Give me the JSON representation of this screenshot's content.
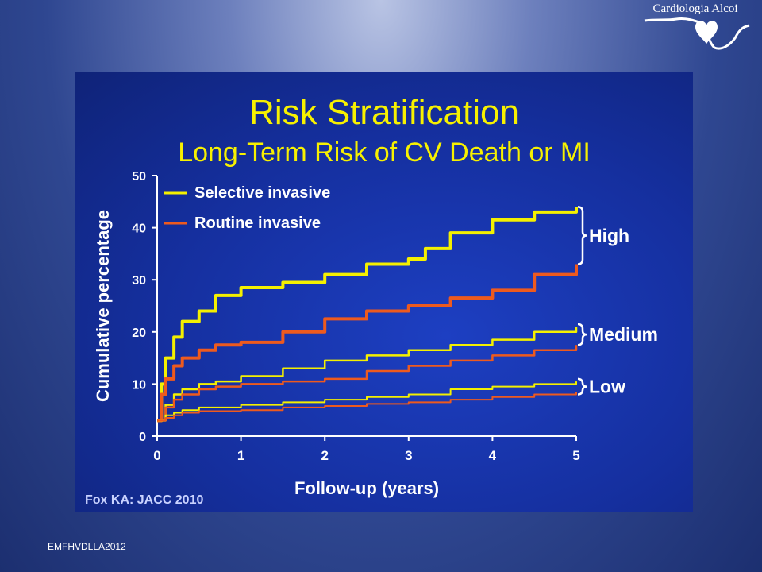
{
  "logo": {
    "text": "Cardiologia Alcoi"
  },
  "footer": {
    "code": "EMFHVDLLA2012"
  },
  "source": "Fox KA:  JACC 2010",
  "colors": {
    "selective": "#f4f000",
    "routine": "#ee5a1e",
    "title": "#f7f100",
    "axis_text": "#ffffff"
  },
  "chart_data": {
    "type": "line",
    "title": "Risk Stratification",
    "subtitle": "Long-Term Risk of CV Death or MI",
    "xlabel": "Follow-up (years)",
    "ylabel": "Cumulative percentage",
    "xlim": [
      0,
      5
    ],
    "ylim": [
      0,
      50
    ],
    "xticks": [
      "0",
      "1",
      "2",
      "3",
      "4",
      "5"
    ],
    "yticks": [
      "0",
      "10",
      "20",
      "30",
      "40",
      "50"
    ],
    "legend": [
      {
        "label": "Selective invasive",
        "series": "selective"
      },
      {
        "label": "Routine invasive",
        "series": "routine"
      }
    ],
    "legend_position": "top-left",
    "groups": [
      "High",
      "Medium",
      "Low"
    ],
    "series": [
      {
        "group": "High",
        "arm": "selective",
        "x": [
          0,
          0.05,
          0.1,
          0.2,
          0.3,
          0.5,
          0.7,
          1.0,
          1.5,
          2.0,
          2.5,
          3.0,
          3.2,
          3.5,
          4.0,
          4.5,
          5.0
        ],
        "y": [
          3,
          10,
          15,
          19,
          22,
          24,
          27,
          28.5,
          29.5,
          31,
          33,
          34,
          36,
          39,
          41.5,
          43,
          44
        ]
      },
      {
        "group": "High",
        "arm": "routine",
        "x": [
          0,
          0.05,
          0.1,
          0.2,
          0.3,
          0.5,
          0.7,
          1.0,
          1.5,
          2.0,
          2.5,
          3.0,
          3.5,
          4.0,
          4.5,
          5.0
        ],
        "y": [
          3,
          8,
          11,
          13.5,
          15,
          16.5,
          17.5,
          18,
          20,
          22.5,
          24,
          25,
          26.5,
          28,
          31,
          33
        ]
      },
      {
        "group": "Medium",
        "arm": "selective",
        "x": [
          0,
          0.1,
          0.2,
          0.3,
          0.5,
          0.7,
          1.0,
          1.5,
          2.0,
          2.5,
          3.0,
          3.5,
          4.0,
          4.5,
          5.0
        ],
        "y": [
          3,
          6,
          8,
          9,
          10,
          10.5,
          11.5,
          13,
          14.5,
          15.5,
          16.5,
          17.5,
          18.5,
          20,
          21
        ]
      },
      {
        "group": "Medium",
        "arm": "routine",
        "x": [
          0,
          0.1,
          0.2,
          0.3,
          0.5,
          0.7,
          1.0,
          1.5,
          2.0,
          2.5,
          3.0,
          3.5,
          4.0,
          4.5,
          5.0
        ],
        "y": [
          3,
          5.5,
          7,
          8,
          9,
          9.5,
          10,
          10.5,
          11,
          12.5,
          13.5,
          14.5,
          15.5,
          16.5,
          17.5
        ]
      },
      {
        "group": "Low",
        "arm": "selective",
        "x": [
          0,
          0.1,
          0.2,
          0.3,
          0.5,
          1.0,
          1.5,
          2.0,
          2.5,
          3.0,
          3.5,
          4.0,
          4.5,
          5.0
        ],
        "y": [
          3,
          4,
          4.5,
          5,
          5.5,
          6,
          6.5,
          7,
          7.5,
          8,
          9,
          9.5,
          10,
          10.5
        ]
      },
      {
        "group": "Low",
        "arm": "routine",
        "x": [
          0,
          0.1,
          0.2,
          0.3,
          0.5,
          1.0,
          1.5,
          2.0,
          2.5,
          3.0,
          3.5,
          4.0,
          4.5,
          5.0
        ],
        "y": [
          3,
          3.5,
          4,
          4.5,
          4.8,
          5,
          5.5,
          5.8,
          6.2,
          6.5,
          7,
          7.5,
          8,
          8.5
        ]
      }
    ]
  }
}
